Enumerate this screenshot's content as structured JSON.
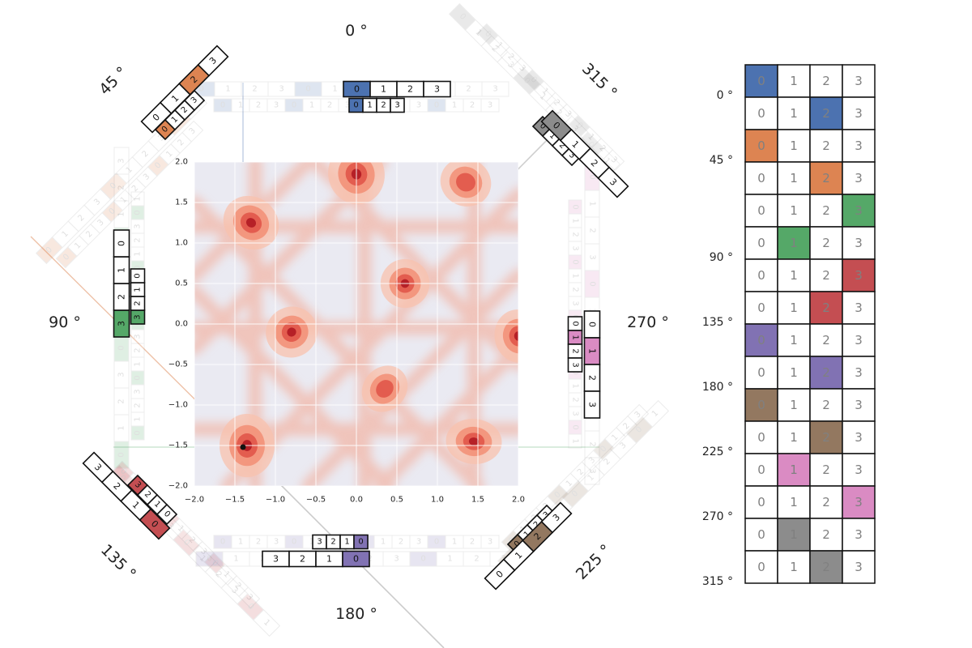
{
  "chart_data": [
    {
      "type": "heatmap",
      "title": "",
      "xlabel": "",
      "ylabel": "",
      "xlim": [
        -2.0,
        2.0
      ],
      "ylim": [
        -2.0,
        2.0
      ],
      "x_ticks": [
        "−2.0",
        "−1.5",
        "−1.0",
        "−0.5",
        "0.0",
        "0.5",
        "1.0",
        "1.5",
        "2.0"
      ],
      "y_ticks": [
        "2.0",
        "1.5",
        "1.0",
        "0.5",
        "0.0",
        "−0.5",
        "−1.0",
        "−1.5",
        "−2.0"
      ],
      "colormap": "Reds",
      "background_color": "#eaeaf2",
      "grid": true,
      "hotspots": [
        {
          "x": -1.35,
          "y": -1.5,
          "intensity": 1.0
        },
        {
          "x": -1.3,
          "y": 1.25,
          "intensity": 0.85
        },
        {
          "x": 0.0,
          "y": 1.85,
          "intensity": 0.75
        },
        {
          "x": 0.6,
          "y": 0.5,
          "intensity": 0.75
        },
        {
          "x": -0.8,
          "y": -0.1,
          "intensity": 0.6
        },
        {
          "x": 1.45,
          "y": -1.45,
          "intensity": 0.6
        },
        {
          "x": 0.35,
          "y": -0.8,
          "intensity": 0.5
        },
        {
          "x": 2.0,
          "y": -0.15,
          "intensity": 0.7
        },
        {
          "x": 1.35,
          "y": 1.75,
          "intensity": 0.45
        }
      ],
      "marker_point": {
        "x": -1.4,
        "y": -1.52
      }
    },
    {
      "type": "table",
      "rows": [
        {
          "angle_label": "0 °",
          "values": [
            "0",
            "1",
            "2",
            "3"
          ],
          "highlight": 0,
          "color": "#4c72b0"
        },
        {
          "angle_label": "",
          "values": [
            "0",
            "1",
            "2",
            "3"
          ],
          "highlight": 2,
          "color": "#4c72b0"
        },
        {
          "angle_label": "45 °",
          "values": [
            "0",
            "1",
            "2",
            "3"
          ],
          "highlight": 0,
          "color": "#dd8452"
        },
        {
          "angle_label": "",
          "values": [
            "0",
            "1",
            "2",
            "3"
          ],
          "highlight": 2,
          "color": "#dd8452"
        },
        {
          "angle_label": "",
          "values": [
            "0",
            "1",
            "2",
            "3"
          ],
          "highlight": 3,
          "color": "#55a868"
        },
        {
          "angle_label": "90 °",
          "values": [
            "0",
            "1",
            "2",
            "3"
          ],
          "highlight": 1,
          "color": "#55a868"
        },
        {
          "angle_label": "",
          "values": [
            "0",
            "1",
            "2",
            "3"
          ],
          "highlight": 3,
          "color": "#c44e52"
        },
        {
          "angle_label": "135 °",
          "values": [
            "0",
            "1",
            "2",
            "3"
          ],
          "highlight": 2,
          "color": "#c44e52"
        },
        {
          "angle_label": "",
          "values": [
            "0",
            "1",
            "2",
            "3"
          ],
          "highlight": 0,
          "color": "#8172b3"
        },
        {
          "angle_label": "180 °",
          "values": [
            "0",
            "1",
            "2",
            "3"
          ],
          "highlight": 2,
          "color": "#8172b3"
        },
        {
          "angle_label": "",
          "values": [
            "0",
            "1",
            "2",
            "3"
          ],
          "highlight": 0,
          "color": "#937860"
        },
        {
          "angle_label": "225 °",
          "values": [
            "0",
            "1",
            "2",
            "3"
          ],
          "highlight": 2,
          "color": "#937860"
        },
        {
          "angle_label": "",
          "values": [
            "0",
            "1",
            "2",
            "3"
          ],
          "highlight": 1,
          "color": "#da8bc3"
        },
        {
          "angle_label": "270 °",
          "values": [
            "0",
            "1",
            "2",
            "3"
          ],
          "highlight": 3,
          "color": "#da8bc3"
        },
        {
          "angle_label": "",
          "values": [
            "0",
            "1",
            "2",
            "3"
          ],
          "highlight": 1,
          "color": "#8c8c8c"
        },
        {
          "angle_label": "315 °",
          "values": [
            "0",
            "1",
            "2",
            "3"
          ],
          "highlight": 2,
          "color": "#8c8c8c"
        }
      ]
    }
  ],
  "angle_labels": [
    "0 °",
    "45 °",
    "90 °",
    "135 °",
    "180 °",
    "225 °",
    "270 °",
    "315 °"
  ],
  "strips": [
    {
      "angle": "0 °",
      "color": "#4c72b0",
      "large": [
        "0",
        "1",
        "2",
        "3"
      ],
      "large_highlight": 0,
      "small": [
        "0",
        "1",
        "2",
        "3"
      ],
      "small_highlight": 0
    },
    {
      "angle": "45 °",
      "color": "#dd8452",
      "large": [
        "0",
        "1",
        "2",
        "3"
      ],
      "large_highlight": 2,
      "small": [
        "0",
        "1",
        "2",
        "3"
      ],
      "small_highlight": 0
    },
    {
      "angle": "90 °",
      "color": "#55a868",
      "large": [
        "0",
        "1",
        "2",
        "3"
      ],
      "large_highlight": 3,
      "small": [
        "0",
        "1",
        "2",
        "3"
      ],
      "small_highlight": 3
    },
    {
      "angle": "135 °",
      "color": "#c44e52",
      "large": [
        "0",
        "1",
        "2",
        "3"
      ],
      "large_highlight": 0,
      "small": [
        "0",
        "1",
        "2",
        "3"
      ],
      "small_highlight": 3
    },
    {
      "angle": "180 °",
      "color": "#8172b3",
      "large": [
        "0",
        "1",
        "2",
        "3"
      ],
      "large_highlight": 0,
      "small": [
        "0",
        "1",
        "2",
        "3"
      ],
      "small_highlight": 0
    },
    {
      "angle": "225 °",
      "color": "#937860",
      "large": [
        "0",
        "1",
        "2",
        "3"
      ],
      "large_highlight": 2,
      "small": [
        "0",
        "1",
        "2",
        "3"
      ],
      "small_highlight": 0
    },
    {
      "angle": "270 °",
      "color": "#da8bc3",
      "large": [
        "0",
        "1",
        "2",
        "3"
      ],
      "large_highlight": 1,
      "small": [
        "0",
        "1",
        "2",
        "3"
      ],
      "small_highlight": 1
    },
    {
      "angle": "315 °",
      "color": "#8c8c8c",
      "large": [
        "0",
        "1",
        "2",
        "3"
      ],
      "large_highlight": 0,
      "small": [
        "0",
        "1",
        "2",
        "3"
      ],
      "small_highlight": 0
    }
  ]
}
